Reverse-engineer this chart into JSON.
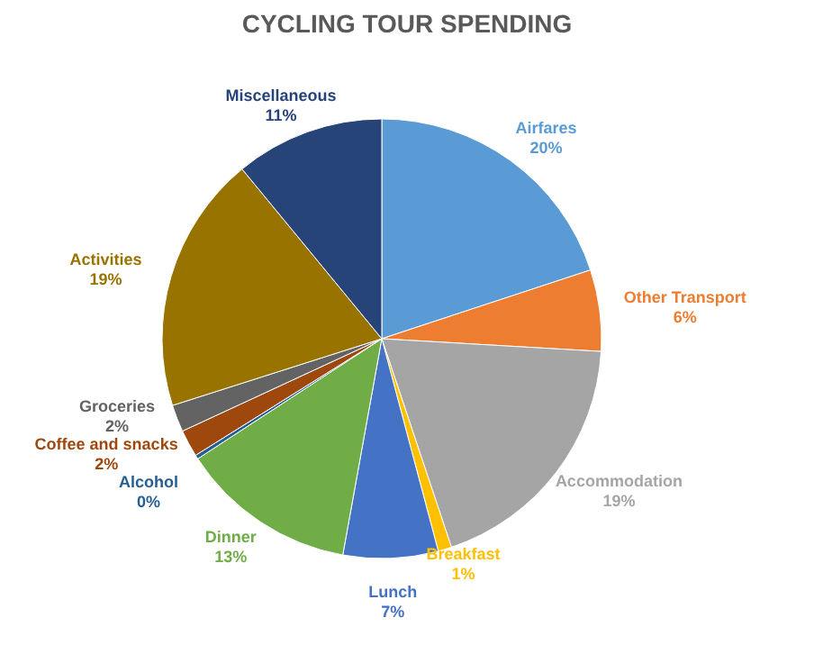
{
  "chart_data": {
    "type": "pie",
    "title": "CYCLING TOUR SPENDING",
    "categories": [
      "Airfares",
      "Other Transport",
      "Accommodation",
      "Breakfast",
      "Lunch",
      "Dinner",
      "Alcohol",
      "Coffee and snacks",
      "Groceries",
      "Activities",
      "Miscellaneous"
    ],
    "values": [
      20,
      6,
      19,
      1,
      7,
      13,
      0.3,
      2,
      2,
      19,
      11
    ],
    "value_labels": [
      "20%",
      "6%",
      "19%",
      "1%",
      "7%",
      "13%",
      "0%",
      "2%",
      "2%",
      "19%",
      "11%"
    ],
    "colors": [
      "#5b9bd5",
      "#ed7d31",
      "#a5a5a5",
      "#ffc000",
      "#4472c4",
      "#70ad47",
      "#255e91",
      "#9e480e",
      "#636363",
      "#997300",
      "#264478"
    ]
  }
}
